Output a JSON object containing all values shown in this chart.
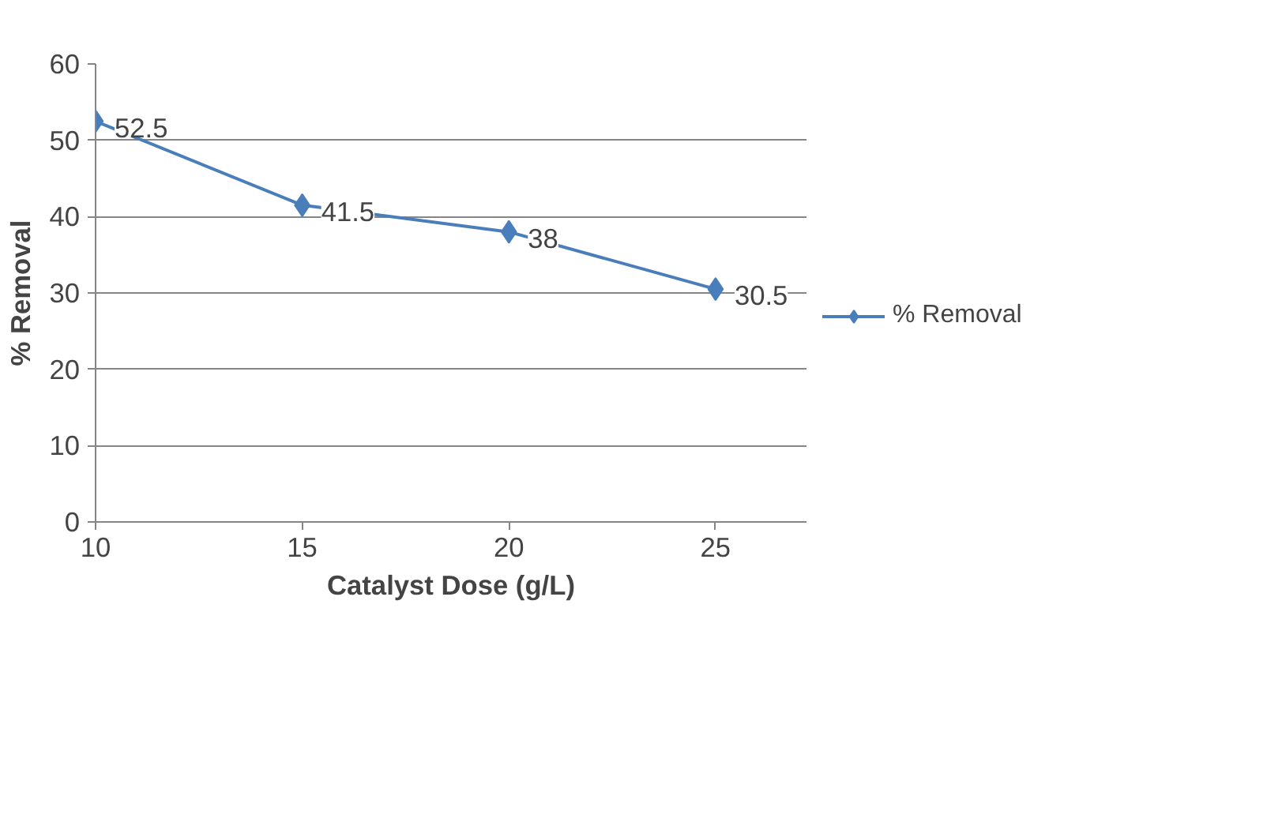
{
  "chart_data": {
    "type": "line",
    "xlabel": "Catalyst Dose (g/L)",
    "ylabel": "% Removal",
    "x": [
      10,
      15,
      20,
      25
    ],
    "series": [
      {
        "name": "% Removal",
        "color": "#4a7ebb",
        "values": [
          52.5,
          41.5,
          38,
          30.5
        ]
      }
    ],
    "xlim": [
      10,
      27.2
    ],
    "xticks": [
      10,
      15,
      20,
      25
    ],
    "ylim": [
      0,
      60
    ],
    "yticks": [
      0,
      10,
      20,
      30,
      40,
      50,
      60
    ],
    "grid": "y",
    "legend": "right",
    "marker": "diamond",
    "data_labels": true
  }
}
